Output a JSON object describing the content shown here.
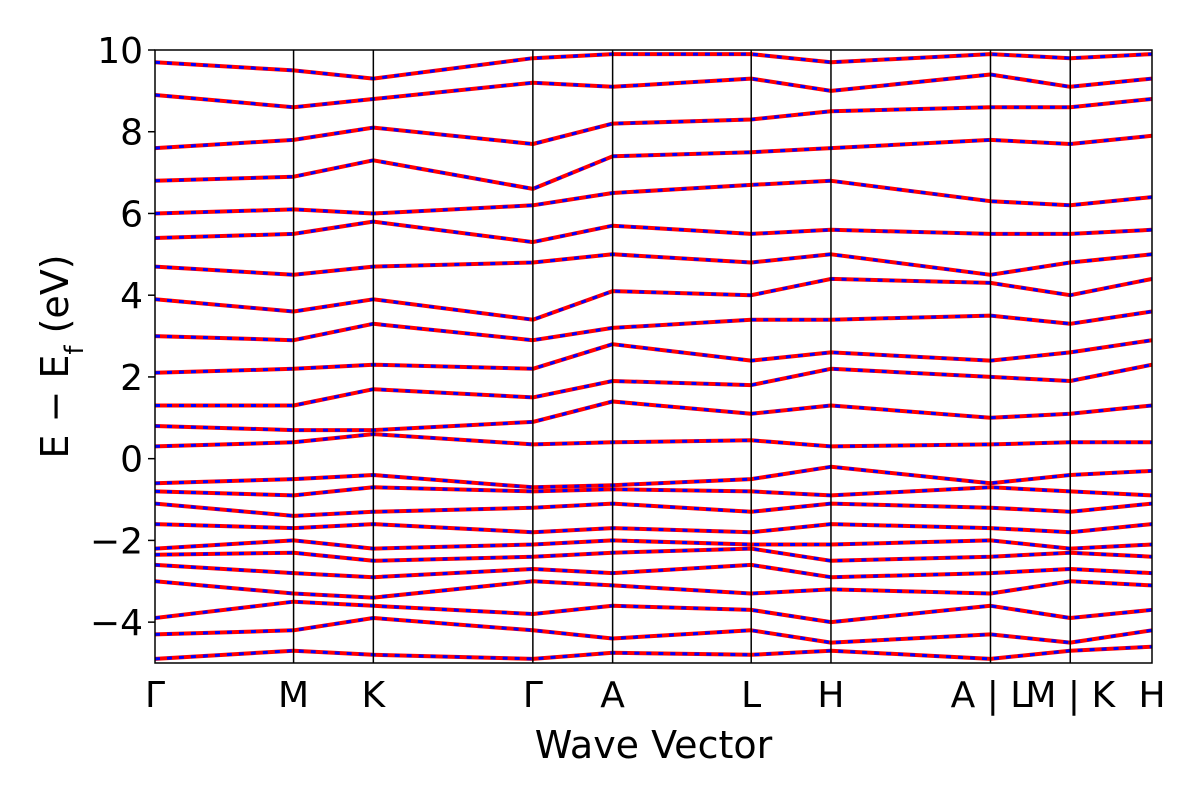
{
  "chart_data": {
    "type": "line",
    "title": "",
    "xlabel": "Wave Vector",
    "ylabel": "E − E",
    "ylabel_subscript": "f",
    "ylabel_unit": " (eV)",
    "ylim": [
      -5,
      10
    ],
    "yticks": [
      -4,
      -2,
      0,
      2,
      4,
      6,
      8,
      10
    ],
    "ytick_labels": [
      "−4",
      "−2",
      "0",
      "2",
      "4",
      "6",
      "8",
      "10"
    ],
    "xlim": [
      0,
      1
    ],
    "high_symmetry_points": [
      {
        "label": "Γ",
        "x": 0.0
      },
      {
        "label": "M",
        "x": 0.139
      },
      {
        "label": "K",
        "x": 0.219
      },
      {
        "label": "Γ",
        "x": 0.379
      },
      {
        "label": "A",
        "x": 0.459
      },
      {
        "label": "L",
        "x": 0.598
      },
      {
        "label": "H",
        "x": 0.678
      },
      {
        "label": "A | L",
        "x": 0.838
      },
      {
        "label": "M | K",
        "x": 0.918
      },
      {
        "label": "H",
        "x": 1.0
      }
    ],
    "series_colors": {
      "solid": "#ff0000",
      "dashed": "#0000ff"
    },
    "grid": false,
    "bands": [
      [
        [
          0,
          -4.9
        ],
        [
          0.139,
          -4.7
        ],
        [
          0.219,
          -4.8
        ],
        [
          0.379,
          -4.9
        ],
        [
          0.459,
          -4.75
        ],
        [
          0.598,
          -4.8
        ],
        [
          0.678,
          -4.7
        ],
        [
          0.838,
          -4.9
        ],
        [
          0.918,
          -4.7
        ],
        [
          1,
          -4.6
        ]
      ],
      [
        [
          0,
          -4.3
        ],
        [
          0.139,
          -4.2
        ],
        [
          0.219,
          -3.9
        ],
        [
          0.379,
          -4.2
        ],
        [
          0.459,
          -4.4
        ],
        [
          0.598,
          -4.2
        ],
        [
          0.678,
          -4.5
        ],
        [
          0.838,
          -4.3
        ],
        [
          0.918,
          -4.5
        ],
        [
          1,
          -4.2
        ]
      ],
      [
        [
          0,
          -3.9
        ],
        [
          0.139,
          -3.5
        ],
        [
          0.219,
          -3.6
        ],
        [
          0.379,
          -3.8
        ],
        [
          0.459,
          -3.6
        ],
        [
          0.598,
          -3.7
        ],
        [
          0.678,
          -4.0
        ],
        [
          0.838,
          -3.6
        ],
        [
          0.918,
          -3.9
        ],
        [
          1,
          -3.7
        ]
      ],
      [
        [
          0,
          -3.0
        ],
        [
          0.139,
          -3.3
        ],
        [
          0.219,
          -3.4
        ],
        [
          0.379,
          -3.0
        ],
        [
          0.459,
          -3.1
        ],
        [
          0.598,
          -3.3
        ],
        [
          0.678,
          -3.2
        ],
        [
          0.838,
          -3.3
        ],
        [
          0.918,
          -3.0
        ],
        [
          1,
          -3.1
        ]
      ],
      [
        [
          0,
          -2.6
        ],
        [
          0.139,
          -2.8
        ],
        [
          0.219,
          -2.9
        ],
        [
          0.379,
          -2.7
        ],
        [
          0.459,
          -2.8
        ],
        [
          0.598,
          -2.6
        ],
        [
          0.678,
          -2.9
        ],
        [
          0.838,
          -2.8
        ],
        [
          0.918,
          -2.7
        ],
        [
          1,
          -2.8
        ]
      ],
      [
        [
          0,
          -2.35
        ],
        [
          0.139,
          -2.3
        ],
        [
          0.219,
          -2.5
        ],
        [
          0.379,
          -2.4
        ],
        [
          0.459,
          -2.3
        ],
        [
          0.598,
          -2.2
        ],
        [
          0.678,
          -2.5
        ],
        [
          0.838,
          -2.4
        ],
        [
          0.918,
          -2.3
        ],
        [
          1,
          -2.4
        ]
      ],
      [
        [
          0,
          -2.2
        ],
        [
          0.139,
          -2.0
        ],
        [
          0.219,
          -2.2
        ],
        [
          0.379,
          -2.1
        ],
        [
          0.459,
          -2.0
        ],
        [
          0.598,
          -2.1
        ],
        [
          0.678,
          -2.1
        ],
        [
          0.838,
          -2.0
        ],
        [
          0.918,
          -2.2
        ],
        [
          1,
          -2.1
        ]
      ],
      [
        [
          0,
          -1.6
        ],
        [
          0.139,
          -1.7
        ],
        [
          0.219,
          -1.6
        ],
        [
          0.379,
          -1.8
        ],
        [
          0.459,
          -1.7
        ],
        [
          0.598,
          -1.8
        ],
        [
          0.678,
          -1.6
        ],
        [
          0.838,
          -1.7
        ],
        [
          0.918,
          -1.8
        ],
        [
          1,
          -1.6
        ]
      ],
      [
        [
          0,
          -1.1
        ],
        [
          0.139,
          -1.4
        ],
        [
          0.219,
          -1.3
        ],
        [
          0.379,
          -1.2
        ],
        [
          0.459,
          -1.1
        ],
        [
          0.598,
          -1.3
        ],
        [
          0.678,
          -1.1
        ],
        [
          0.838,
          -1.2
        ],
        [
          0.918,
          -1.3
        ],
        [
          1,
          -1.1
        ]
      ],
      [
        [
          0,
          -0.8
        ],
        [
          0.139,
          -0.9
        ],
        [
          0.219,
          -0.7
        ],
        [
          0.379,
          -0.8
        ],
        [
          0.459,
          -0.75
        ],
        [
          0.598,
          -0.8
        ],
        [
          0.678,
          -0.9
        ],
        [
          0.838,
          -0.7
        ],
        [
          0.918,
          -0.8
        ],
        [
          1,
          -0.9
        ]
      ],
      [
        [
          0,
          -0.6
        ],
        [
          0.139,
          -0.5
        ],
        [
          0.219,
          -0.4
        ],
        [
          0.379,
          -0.7
        ],
        [
          0.459,
          -0.65
        ],
        [
          0.598,
          -0.5
        ],
        [
          0.678,
          -0.2
        ],
        [
          0.838,
          -0.6
        ],
        [
          0.918,
          -0.4
        ],
        [
          1,
          -0.3
        ]
      ],
      [
        [
          0,
          0.3
        ],
        [
          0.139,
          0.4
        ],
        [
          0.219,
          0.6
        ],
        [
          0.379,
          0.35
        ],
        [
          0.459,
          0.4
        ],
        [
          0.598,
          0.45
        ],
        [
          0.678,
          0.3
        ],
        [
          0.838,
          0.35
        ],
        [
          0.918,
          0.4
        ],
        [
          1,
          0.4
        ]
      ],
      [
        [
          0,
          0.8
        ],
        [
          0.139,
          0.7
        ],
        [
          0.219,
          0.7
        ],
        [
          0.379,
          0.9
        ],
        [
          0.459,
          1.4
        ],
        [
          0.598,
          1.1
        ],
        [
          0.678,
          1.3
        ],
        [
          0.838,
          1.0
        ],
        [
          0.918,
          1.1
        ],
        [
          1,
          1.3
        ]
      ],
      [
        [
          0,
          1.3
        ],
        [
          0.139,
          1.3
        ],
        [
          0.219,
          1.7
        ],
        [
          0.379,
          1.5
        ],
        [
          0.459,
          1.9
        ],
        [
          0.598,
          1.8
        ],
        [
          0.678,
          2.2
        ],
        [
          0.838,
          2.0
        ],
        [
          0.918,
          1.9
        ],
        [
          1,
          2.3
        ]
      ],
      [
        [
          0,
          2.1
        ],
        [
          0.139,
          2.2
        ],
        [
          0.219,
          2.3
        ],
        [
          0.379,
          2.2
        ],
        [
          0.459,
          2.8
        ],
        [
          0.598,
          2.4
        ],
        [
          0.678,
          2.6
        ],
        [
          0.838,
          2.4
        ],
        [
          0.918,
          2.6
        ],
        [
          1,
          2.9
        ]
      ],
      [
        [
          0,
          3.0
        ],
        [
          0.139,
          2.9
        ],
        [
          0.219,
          3.3
        ],
        [
          0.379,
          2.9
        ],
        [
          0.459,
          3.2
        ],
        [
          0.598,
          3.4
        ],
        [
          0.678,
          3.4
        ],
        [
          0.838,
          3.5
        ],
        [
          0.918,
          3.3
        ],
        [
          1,
          3.6
        ]
      ],
      [
        [
          0,
          3.9
        ],
        [
          0.139,
          3.6
        ],
        [
          0.219,
          3.9
        ],
        [
          0.379,
          3.4
        ],
        [
          0.459,
          4.1
        ],
        [
          0.598,
          4.0
        ],
        [
          0.678,
          4.4
        ],
        [
          0.838,
          4.3
        ],
        [
          0.918,
          4.0
        ],
        [
          1,
          4.4
        ]
      ],
      [
        [
          0,
          4.7
        ],
        [
          0.139,
          4.5
        ],
        [
          0.219,
          4.7
        ],
        [
          0.379,
          4.8
        ],
        [
          0.459,
          5.0
        ],
        [
          0.598,
          4.8
        ],
        [
          0.678,
          5.0
        ],
        [
          0.838,
          4.5
        ],
        [
          0.918,
          4.8
        ],
        [
          1,
          5.0
        ]
      ],
      [
        [
          0,
          5.4
        ],
        [
          0.139,
          5.5
        ],
        [
          0.219,
          5.8
        ],
        [
          0.379,
          5.3
        ],
        [
          0.459,
          5.7
        ],
        [
          0.598,
          5.5
        ],
        [
          0.678,
          5.6
        ],
        [
          0.838,
          5.5
        ],
        [
          0.918,
          5.5
        ],
        [
          1,
          5.6
        ]
      ],
      [
        [
          0,
          6.0
        ],
        [
          0.139,
          6.1
        ],
        [
          0.219,
          6.0
        ],
        [
          0.379,
          6.2
        ],
        [
          0.459,
          6.5
        ],
        [
          0.598,
          6.7
        ],
        [
          0.678,
          6.8
        ],
        [
          0.838,
          6.3
        ],
        [
          0.918,
          6.2
        ],
        [
          1,
          6.4
        ]
      ],
      [
        [
          0,
          6.8
        ],
        [
          0.139,
          6.9
        ],
        [
          0.219,
          7.3
        ],
        [
          0.379,
          6.6
        ],
        [
          0.459,
          7.4
        ],
        [
          0.598,
          7.5
        ],
        [
          0.678,
          7.6
        ],
        [
          0.838,
          7.8
        ],
        [
          0.918,
          7.7
        ],
        [
          1,
          7.9
        ]
      ],
      [
        [
          0,
          7.6
        ],
        [
          0.139,
          7.8
        ],
        [
          0.219,
          8.1
        ],
        [
          0.379,
          7.7
        ],
        [
          0.459,
          8.2
        ],
        [
          0.598,
          8.3
        ],
        [
          0.678,
          8.5
        ],
        [
          0.838,
          8.6
        ],
        [
          0.918,
          8.6
        ],
        [
          1,
          8.8
        ]
      ],
      [
        [
          0,
          8.9
        ],
        [
          0.139,
          8.6
        ],
        [
          0.219,
          8.8
        ],
        [
          0.379,
          9.2
        ],
        [
          0.459,
          9.1
        ],
        [
          0.598,
          9.3
        ],
        [
          0.678,
          9.0
        ],
        [
          0.838,
          9.4
        ],
        [
          0.918,
          9.1
        ],
        [
          1,
          9.3
        ]
      ],
      [
        [
          0,
          9.7
        ],
        [
          0.139,
          9.5
        ],
        [
          0.219,
          9.3
        ],
        [
          0.379,
          9.8
        ],
        [
          0.459,
          9.9
        ],
        [
          0.598,
          9.9
        ],
        [
          0.678,
          9.7
        ],
        [
          0.838,
          9.9
        ],
        [
          0.918,
          9.8
        ],
        [
          1,
          9.9
        ]
      ]
    ]
  }
}
